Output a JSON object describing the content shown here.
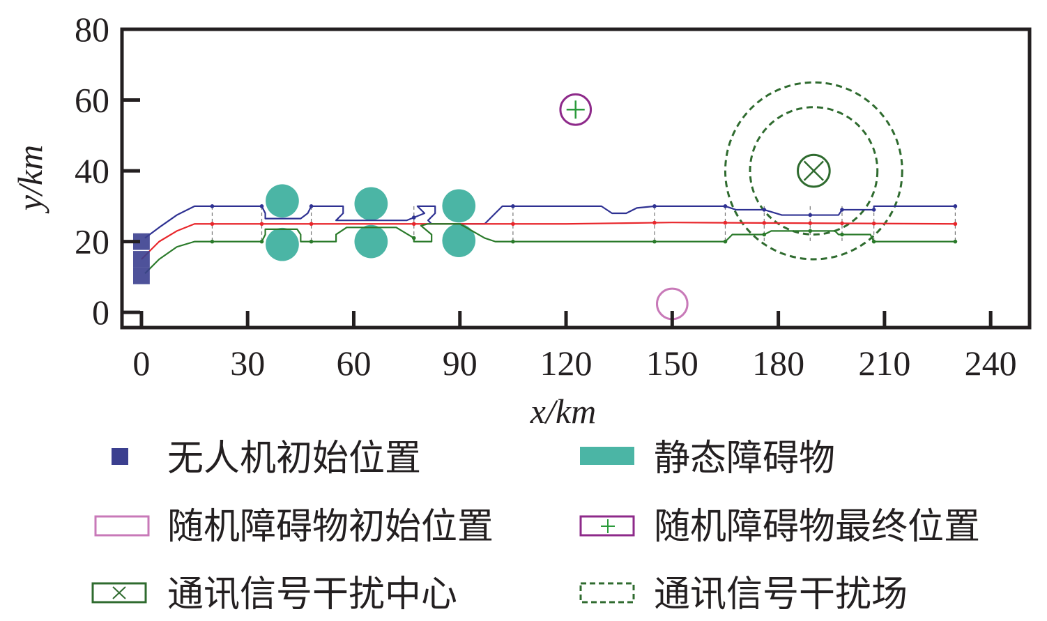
{
  "chart_data": {
    "type": "line",
    "xlabel": "x/km",
    "ylabel": "y/km",
    "xlim": [
      -5.5,
      251
    ],
    "ylim": [
      -4.3,
      80
    ],
    "xticks": [
      0,
      30,
      60,
      90,
      120,
      150,
      180,
      210,
      240
    ],
    "yticks": [
      0,
      20,
      40,
      60,
      80
    ],
    "grid": false,
    "series": [
      {
        "name": "uav-path-top",
        "color": "#2e3192",
        "points": [
          [
            1,
            21
          ],
          [
            5,
            24
          ],
          [
            10,
            27.5
          ],
          [
            15,
            30
          ],
          [
            34,
            30
          ],
          [
            35,
            28
          ],
          [
            35,
            26.5
          ],
          [
            45,
            26.5
          ],
          [
            47,
            28
          ],
          [
            48,
            30
          ],
          [
            57,
            30
          ],
          [
            57,
            28
          ],
          [
            55,
            26
          ],
          [
            75,
            26
          ],
          [
            80,
            28
          ],
          [
            78,
            30
          ],
          [
            83,
            30
          ],
          [
            83,
            28
          ],
          [
            81,
            26
          ],
          [
            82,
            25
          ],
          [
            97,
            25
          ],
          [
            100,
            28
          ],
          [
            102,
            30
          ],
          [
            130,
            30
          ],
          [
            133,
            28
          ],
          [
            137,
            28
          ],
          [
            140,
            29.5
          ],
          [
            145,
            30
          ],
          [
            165,
            30
          ],
          [
            168,
            29
          ],
          [
            176,
            29
          ],
          [
            181,
            27.5
          ],
          [
            197,
            27.5
          ],
          [
            198,
            29
          ],
          [
            207,
            29
          ],
          [
            207,
            30
          ],
          [
            230,
            30
          ]
        ]
      },
      {
        "name": "uav-path-middle",
        "color": "#e8262b",
        "points": [
          [
            0,
            15
          ],
          [
            5,
            20
          ],
          [
            10,
            23
          ],
          [
            15,
            25
          ],
          [
            60,
            25
          ],
          [
            120,
            25
          ],
          [
            150,
            25.4
          ],
          [
            230,
            25
          ]
        ]
      },
      {
        "name": "uav-path-bottom",
        "color": "#2a7a2a",
        "points": [
          [
            1,
            11
          ],
          [
            5,
            15
          ],
          [
            10,
            18.5
          ],
          [
            15,
            20
          ],
          [
            34,
            20
          ],
          [
            35,
            22
          ],
          [
            35,
            23.5
          ],
          [
            44,
            23.5
          ],
          [
            45,
            22
          ],
          [
            45,
            20
          ],
          [
            55,
            20
          ],
          [
            55,
            22
          ],
          [
            58,
            24
          ],
          [
            72,
            24
          ],
          [
            77,
            21
          ],
          [
            77,
            20
          ],
          [
            82,
            20
          ],
          [
            82,
            22
          ],
          [
            79,
            24.5
          ],
          [
            81,
            25
          ],
          [
            90,
            25
          ],
          [
            97,
            21
          ],
          [
            100,
            20
          ],
          [
            165,
            20
          ],
          [
            167,
            22
          ],
          [
            176,
            22
          ],
          [
            178,
            23
          ],
          [
            196,
            23
          ],
          [
            197,
            22
          ],
          [
            206,
            22
          ],
          [
            207,
            20
          ],
          [
            230,
            20
          ]
        ]
      }
    ],
    "waypoints_x": [
      20,
      34,
      48,
      77,
      105,
      145,
      165,
      176,
      189,
      198,
      207,
      230
    ],
    "uav_initial_positions": [
      [
        0,
        20
      ],
      [
        0,
        15
      ],
      [
        0,
        10.3
      ]
    ],
    "static_obstacles": {
      "radius": 4.7,
      "centers": [
        [
          39.8,
          31.5
        ],
        [
          39.8,
          19.2
        ],
        [
          64.9,
          30.7
        ],
        [
          64.9,
          20
        ],
        [
          89.7,
          30.1
        ],
        [
          89.7,
          20.3
        ]
      ]
    },
    "random_obstacle_initial": {
      "center": [
        150,
        2.4
      ],
      "radius": 4.3
    },
    "random_obstacle_final": {
      "center": [
        122.7,
        57.3
      ],
      "radius": 4.3
    },
    "interference_center": {
      "center": [
        190,
        40
      ],
      "radius": 4.5
    },
    "interference_field": {
      "center": [
        190,
        40
      ],
      "radii": [
        18,
        25
      ]
    },
    "legend": {
      "placement": "bottom",
      "entries": [
        "无人机初始位置",
        "静态障碍物",
        "随机障碍物初始位置",
        "随机障碍物最终位置",
        "通讯信号干扰中心",
        "通讯信号干扰场"
      ]
    },
    "colors": {
      "uav": "#3b3f8f",
      "obstacle": "#4bb5a5",
      "random_initial": "#c879b8",
      "random_final": "#8e2a8a",
      "interference": "#2f6b2f",
      "axis": "#231f20"
    }
  }
}
